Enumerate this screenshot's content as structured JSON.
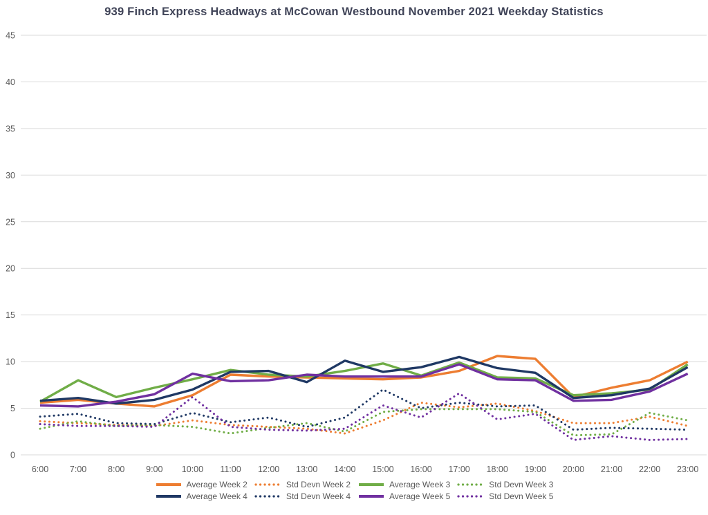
{
  "chart": {
    "title": "939 Finch Express Headways at McCowan Westbound November 2021 Weekday Statistics"
  },
  "chart_data": {
    "type": "line",
    "title": "939 Finch Express Headways at McCowan Westbound November 2021 Weekday Statistics",
    "xlabel": "",
    "ylabel": "",
    "ylim": [
      0,
      45
    ],
    "yticks": [
      0,
      5,
      10,
      15,
      20,
      25,
      30,
      35,
      40,
      45
    ],
    "grid": true,
    "legend_position": "bottom",
    "categories": [
      "6:00",
      "7:00",
      "8:00",
      "9:00",
      "10:00",
      "11:00",
      "12:00",
      "13:00",
      "14:00",
      "15:00",
      "16:00",
      "17:00",
      "18:00",
      "19:00",
      "20:00",
      "21:00",
      "22:00",
      "23:00"
    ],
    "series": [
      {
        "name": "Average Week 2",
        "color": "#ED7D31",
        "style": "solid",
        "values": [
          5.6,
          5.9,
          5.5,
          5.2,
          6.4,
          8.6,
          8.4,
          8.3,
          8.2,
          8.1,
          8.3,
          9.0,
          10.6,
          10.3,
          6.2,
          7.2,
          8.0,
          10.0
        ]
      },
      {
        "name": "Std Devn Week 2",
        "color": "#ED7D31",
        "style": "dotted",
        "values": [
          3.6,
          3.4,
          3.2,
          3.1,
          3.7,
          3.2,
          3.0,
          2.8,
          2.3,
          3.7,
          5.6,
          5.1,
          5.5,
          4.7,
          3.4,
          3.4,
          4.1,
          3.1
        ]
      },
      {
        "name": "Average Week 3",
        "color": "#70AD47",
        "style": "solid",
        "values": [
          5.7,
          8.0,
          6.2,
          7.2,
          8.1,
          9.1,
          8.6,
          8.4,
          9.0,
          9.8,
          8.5,
          9.9,
          8.3,
          8.2,
          6.4,
          6.6,
          7.0,
          9.7
        ]
      },
      {
        "name": "Std Devn Week 3",
        "color": "#70AD47",
        "style": "dotted",
        "values": [
          2.8,
          3.6,
          3.1,
          3.2,
          3.0,
          2.3,
          2.9,
          3.4,
          2.5,
          4.6,
          4.9,
          4.9,
          4.9,
          4.6,
          2.1,
          2.2,
          4.5,
          3.7
        ]
      },
      {
        "name": "Average Week 4",
        "color": "#1F3864",
        "style": "solid",
        "values": [
          5.8,
          6.1,
          5.5,
          5.9,
          7.0,
          8.9,
          9.0,
          7.8,
          10.1,
          8.9,
          9.4,
          10.5,
          9.3,
          8.8,
          6.1,
          6.4,
          7.1,
          9.4
        ]
      },
      {
        "name": "Std Devn Week 4",
        "color": "#1F3864",
        "style": "dotted",
        "values": [
          4.1,
          4.4,
          3.4,
          3.3,
          4.5,
          3.5,
          4.0,
          3.0,
          4.0,
          7.0,
          5.0,
          5.6,
          5.2,
          5.3,
          2.7,
          2.9,
          2.8,
          2.7
        ]
      },
      {
        "name": "Average Week 5",
        "color": "#7030A0",
        "style": "solid",
        "values": [
          5.3,
          5.2,
          5.7,
          6.5,
          8.7,
          7.9,
          8.0,
          8.6,
          8.4,
          8.4,
          8.4,
          9.7,
          8.1,
          8.0,
          5.8,
          5.9,
          6.8,
          8.7
        ]
      },
      {
        "name": "Std Devn Week 5",
        "color": "#7030A0",
        "style": "dotted",
        "values": [
          3.3,
          3.1,
          3.1,
          3.0,
          6.2,
          3.0,
          2.7,
          2.6,
          2.8,
          5.3,
          4.0,
          6.6,
          3.8,
          4.4,
          1.6,
          2.0,
          1.6,
          1.7
        ]
      }
    ],
    "colors": {
      "gridline": "#D9D9D9",
      "tick_label": "#595959",
      "title": "#404458"
    }
  }
}
